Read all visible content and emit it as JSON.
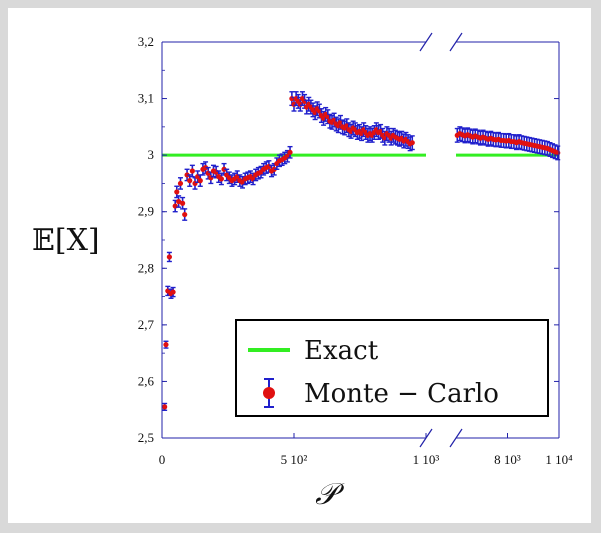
{
  "chart_data": {
    "type": "scatter",
    "ylabel": "𝔼[X]",
    "xlabel": "𝒫",
    "ylim": [
      2.5,
      3.2
    ],
    "grid": false,
    "legend_placement": "bottom-right",
    "y_ticks": [
      {
        "value": 2.5,
        "label": "2,5"
      },
      {
        "value": 2.6,
        "label": "2,6"
      },
      {
        "value": 2.7,
        "label": "2,7"
      },
      {
        "value": 2.8,
        "label": "2,8"
      },
      {
        "value": 2.9,
        "label": "2,9"
      },
      {
        "value": 3.0,
        "label": "3"
      },
      {
        "value": 3.1,
        "label": "3,1"
      },
      {
        "value": 3.2,
        "label": "3,2"
      }
    ],
    "x_segments": [
      {
        "xlim": [
          0,
          1000
        ],
        "ticks": [
          {
            "value": 0,
            "label": "0"
          },
          {
            "value": 500,
            "label": "5 10²"
          },
          {
            "value": 1000,
            "label": "1 10³"
          }
        ]
      },
      {
        "xlim": [
          6000,
          10000
        ],
        "ticks": [
          {
            "value": 8000,
            "label": "8 10³"
          },
          {
            "value": 10000,
            "label": "1 10⁴"
          }
        ]
      }
    ],
    "series": [
      {
        "name": "Exact",
        "kind": "line",
        "color": "#33ee22",
        "value": 3.0
      },
      {
        "name": "Monte − Carlo",
        "kind": "errorbar",
        "marker_color": "#e01010",
        "errorbar_color": "#2020cc",
        "segment0_points": [
          [
            10,
            2.555,
            0.006
          ],
          [
            15,
            2.665,
            0.006
          ],
          [
            22,
            2.76,
            0.008
          ],
          [
            28,
            2.82,
            0.008
          ],
          [
            34,
            2.755,
            0.008
          ],
          [
            42,
            2.758,
            0.008
          ],
          [
            50,
            2.91,
            0.01
          ],
          [
            56,
            2.935,
            0.01
          ],
          [
            63,
            2.918,
            0.01
          ],
          [
            70,
            2.95,
            0.01
          ],
          [
            78,
            2.915,
            0.01
          ],
          [
            86,
            2.895,
            0.01
          ],
          [
            95,
            2.965,
            0.01
          ],
          [
            105,
            2.955,
            0.01
          ],
          [
            115,
            2.972,
            0.01
          ],
          [
            125,
            2.95,
            0.01
          ],
          [
            135,
            2.962,
            0.01
          ],
          [
            145,
            2.955,
            0.01
          ],
          [
            155,
            2.975,
            0.01
          ],
          [
            165,
            2.978,
            0.01
          ],
          [
            175,
            2.968,
            0.01
          ],
          [
            185,
            2.96,
            0.01
          ],
          [
            195,
            2.972,
            0.01
          ],
          [
            205,
            2.97,
            0.01
          ],
          [
            215,
            2.962,
            0.01
          ],
          [
            225,
            2.958,
            0.01
          ],
          [
            235,
            2.975,
            0.01
          ],
          [
            245,
            2.965,
            0.01
          ],
          [
            255,
            2.96,
            0.01
          ],
          [
            265,
            2.955,
            0.01
          ],
          [
            275,
            2.958,
            0.01
          ],
          [
            285,
            2.962,
            0.01
          ],
          [
            295,
            2.955,
            0.01
          ],
          [
            305,
            2.952,
            0.01
          ],
          [
            315,
            2.958,
            0.01
          ],
          [
            325,
            2.96,
            0.01
          ],
          [
            335,
            2.962,
            0.01
          ],
          [
            345,
            2.958,
            0.01
          ],
          [
            355,
            2.965,
            0.01
          ],
          [
            365,
            2.968,
            0.01
          ],
          [
            375,
            2.97,
            0.01
          ],
          [
            385,
            2.975,
            0.01
          ],
          [
            395,
            2.978,
            0.01
          ],
          [
            405,
            2.98,
            0.01
          ],
          [
            415,
            2.972,
            0.01
          ],
          [
            425,
            2.975,
            0.01
          ],
          [
            435,
            2.985,
            0.01
          ],
          [
            445,
            2.99,
            0.01
          ],
          [
            455,
            2.992,
            0.01
          ],
          [
            465,
            2.995,
            0.01
          ],
          [
            475,
            2.998,
            0.01
          ],
          [
            485,
            3.005,
            0.01
          ],
          [
            492,
            3.1,
            0.012
          ],
          [
            500,
            3.09,
            0.012
          ],
          [
            508,
            3.1,
            0.012
          ],
          [
            516,
            3.095,
            0.012
          ],
          [
            524,
            3.09,
            0.012
          ],
          [
            532,
            3.1,
            0.012
          ],
          [
            540,
            3.095,
            0.012
          ],
          [
            548,
            3.085,
            0.012
          ],
          [
            556,
            3.09,
            0.012
          ],
          [
            564,
            3.085,
            0.012
          ],
          [
            572,
            3.08,
            0.012
          ],
          [
            580,
            3.075,
            0.012
          ],
          [
            588,
            3.082,
            0.012
          ],
          [
            596,
            3.078,
            0.012
          ],
          [
            604,
            3.07,
            0.012
          ],
          [
            612,
            3.065,
            0.012
          ],
          [
            620,
            3.072,
            0.012
          ],
          [
            628,
            3.068,
            0.012
          ],
          [
            636,
            3.06,
            0.012
          ],
          [
            644,
            3.058,
            0.012
          ],
          [
            652,
            3.062,
            0.012
          ],
          [
            660,
            3.055,
            0.012
          ],
          [
            668,
            3.052,
            0.012
          ],
          [
            676,
            3.058,
            0.012
          ],
          [
            684,
            3.05,
            0.012
          ],
          [
            692,
            3.048,
            0.012
          ],
          [
            700,
            3.052,
            0.012
          ],
          [
            708,
            3.045,
            0.012
          ],
          [
            716,
            3.042,
            0.012
          ],
          [
            724,
            3.048,
            0.012
          ],
          [
            732,
            3.045,
            0.012
          ],
          [
            740,
            3.04,
            0.012
          ],
          [
            748,
            3.042,
            0.012
          ],
          [
            756,
            3.038,
            0.012
          ],
          [
            764,
            3.045,
            0.012
          ],
          [
            772,
            3.04,
            0.012
          ],
          [
            780,
            3.035,
            0.012
          ],
          [
            788,
            3.038,
            0.012
          ],
          [
            796,
            3.035,
            0.012
          ],
          [
            804,
            3.04,
            0.012
          ],
          [
            812,
            3.045,
            0.012
          ],
          [
            820,
            3.04,
            0.012
          ],
          [
            828,
            3.042,
            0.012
          ],
          [
            836,
            3.035,
            0.012
          ],
          [
            844,
            3.03,
            0.012
          ],
          [
            852,
            3.038,
            0.012
          ],
          [
            860,
            3.035,
            0.012
          ],
          [
            868,
            3.03,
            0.012
          ],
          [
            876,
            3.035,
            0.012
          ],
          [
            884,
            3.032,
            0.012
          ],
          [
            892,
            3.03,
            0.012
          ],
          [
            900,
            3.028,
            0.012
          ],
          [
            908,
            3.03,
            0.012
          ],
          [
            916,
            3.025,
            0.012
          ],
          [
            924,
            3.028,
            0.012
          ],
          [
            932,
            3.024,
            0.012
          ],
          [
            940,
            3.02,
            0.012
          ],
          [
            948,
            3.022,
            0.012
          ]
        ],
        "segment1_points": [
          [
            6050,
            3.035,
            0.012
          ],
          [
            6150,
            3.038,
            0.012
          ],
          [
            6250,
            3.036,
            0.012
          ],
          [
            6350,
            3.034,
            0.012
          ],
          [
            6450,
            3.036,
            0.012
          ],
          [
            6550,
            3.034,
            0.012
          ],
          [
            6650,
            3.032,
            0.012
          ],
          [
            6750,
            3.034,
            0.012
          ],
          [
            6850,
            3.032,
            0.012
          ],
          [
            6950,
            3.03,
            0.012
          ],
          [
            7050,
            3.032,
            0.012
          ],
          [
            7150,
            3.03,
            0.012
          ],
          [
            7250,
            3.028,
            0.012
          ],
          [
            7350,
            3.03,
            0.012
          ],
          [
            7450,
            3.028,
            0.012
          ],
          [
            7550,
            3.027,
            0.012
          ],
          [
            7650,
            3.028,
            0.012
          ],
          [
            7750,
            3.026,
            0.012
          ],
          [
            7850,
            3.026,
            0.012
          ],
          [
            7950,
            3.025,
            0.012
          ],
          [
            8050,
            3.026,
            0.012
          ],
          [
            8150,
            3.024,
            0.012
          ],
          [
            8250,
            3.024,
            0.012
          ],
          [
            8350,
            3.022,
            0.012
          ],
          [
            8450,
            3.024,
            0.012
          ],
          [
            8550,
            3.022,
            0.012
          ],
          [
            8650,
            3.021,
            0.012
          ],
          [
            8750,
            3.02,
            0.012
          ],
          [
            8850,
            3.019,
            0.012
          ],
          [
            8950,
            3.018,
            0.012
          ],
          [
            9050,
            3.017,
            0.012
          ],
          [
            9150,
            3.016,
            0.012
          ],
          [
            9250,
            3.015,
            0.012
          ],
          [
            9350,
            3.014,
            0.012
          ],
          [
            9450,
            3.013,
            0.012
          ],
          [
            9550,
            3.012,
            0.012
          ],
          [
            9650,
            3.01,
            0.012
          ],
          [
            9750,
            3.008,
            0.012
          ],
          [
            9850,
            3.006,
            0.012
          ],
          [
            9950,
            3.004,
            0.012
          ]
        ]
      }
    ]
  }
}
